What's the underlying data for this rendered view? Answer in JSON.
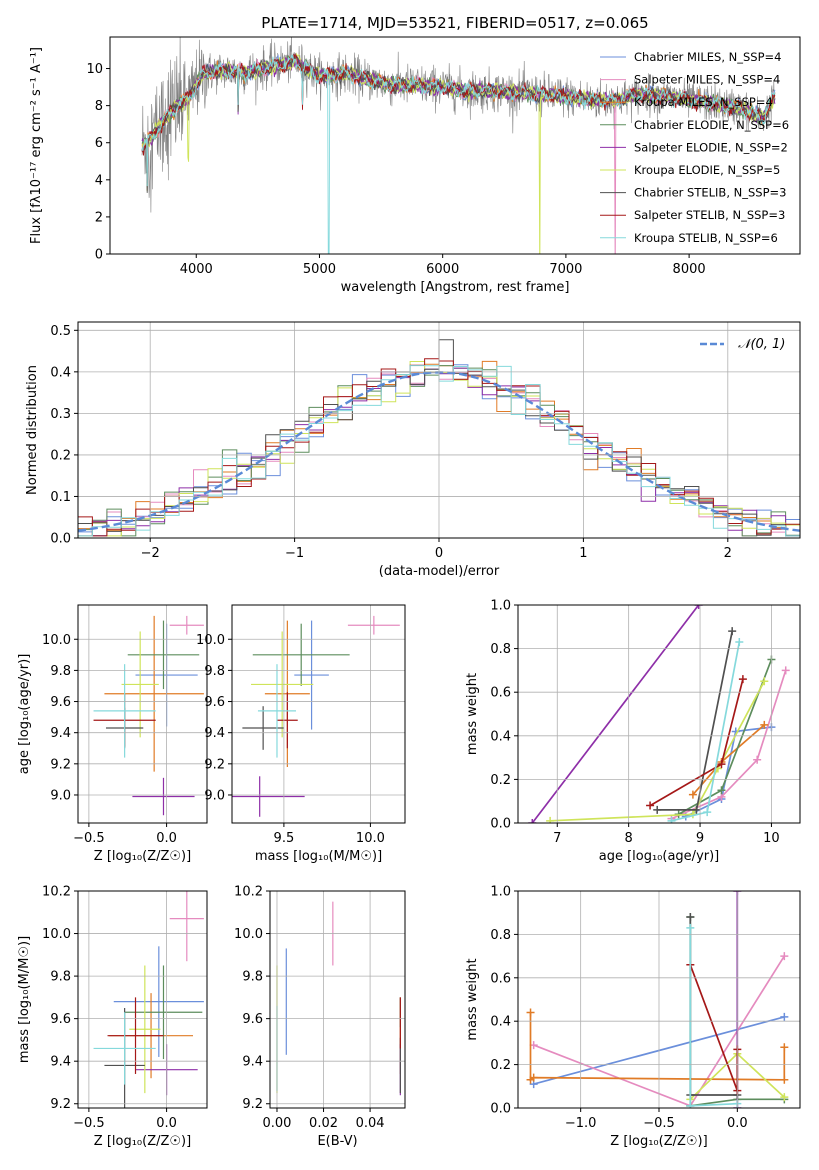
{
  "colors": [
    "#6b8fdb",
    "#e58bbf",
    "#e07b26",
    "#5d8d5d",
    "#8e2fa8",
    "#cfe45a",
    "#505050",
    "#a51818",
    "#85d9dc"
  ],
  "chart_data": [
    {
      "id": "spectrum",
      "type": "line",
      "title": "PLATE=1714, MJD=53521, FIBERID=0517, z=0.065",
      "xlabel": "wavelength [Angstrom, rest frame]",
      "ylabel": "Flux [fλ10⁻¹⁷ erg cm⁻² s⁻¹ A⁻¹]",
      "xlim": [
        3300,
        8900
      ],
      "ylim": [
        0,
        11.7
      ],
      "xticks": [
        "4000",
        "5000",
        "6000",
        "7000",
        "8000"
      ],
      "yticks": [
        "0",
        "2",
        "4",
        "6",
        "8",
        "10"
      ],
      "legend_position": "top-right",
      "legend": [
        "Chabrier MILES, N_SSP=4",
        "Salpeter MILES, N_SSP=4",
        "Kroupa MILES, N_SSP=4",
        "Chabrier ELODIE, N_SSP=6",
        "Salpeter ELODIE, N_SSP=2",
        "Kroupa ELODIE, N_SSP=5",
        "Chabrier STELIB, N_SSP=3",
        "Salpeter STELIB, N_SSP=3",
        "Kroupa STELIB, N_SSP=6"
      ],
      "continuum": {
        "x": [
          3560,
          3650,
          3750,
          3850,
          3950,
          4050,
          4200,
          4400,
          4600,
          4800,
          5000,
          5200,
          5400,
          5600,
          5800,
          6000,
          6200,
          6400,
          6600,
          6800,
          7000,
          7200,
          7400,
          7600,
          7800,
          8000,
          8200,
          8400,
          8600,
          8700
        ],
        "y": [
          5.8,
          6.4,
          7.3,
          8.0,
          8.5,
          9.7,
          9.9,
          9.8,
          10.1,
          10.4,
          9.6,
          9.7,
          9.4,
          9.1,
          9.1,
          9.0,
          8.8,
          8.8,
          8.7,
          8.6,
          8.5,
          8.3,
          8.3,
          8.6,
          8.5,
          8.3,
          8.1,
          7.9,
          7.3,
          8.6
        ]
      }
    },
    {
      "id": "residuals",
      "type": "line",
      "xlabel": "(data-model)/error",
      "ylabel": "Normed distribution",
      "xlim": [
        -2.5,
        2.5
      ],
      "ylim": [
        0,
        0.52
      ],
      "xticks": [
        "−2",
        "−1",
        "0",
        "1",
        "2"
      ],
      "yticks": [
        "0.0",
        "0.1",
        "0.2",
        "0.3",
        "0.4",
        "0.5"
      ],
      "grid": true,
      "legend_position": "top-right",
      "legend": [
        "𝒩(0, 1)"
      ],
      "normal": {
        "mu": 0,
        "sigma": 1
      }
    },
    {
      "id": "age-vs-Z",
      "type": "scatter",
      "xlabel": "Z [log₁₀(Z/Z☉)]",
      "ylabel": "age  [log₁₀(age/yr)]",
      "xlim": [
        -0.57,
        0.26
      ],
      "ylim": [
        8.82,
        10.22
      ],
      "xticks": [
        "−0.5",
        "0.0"
      ],
      "yticks": [
        "9.0",
        "9.2",
        "9.4",
        "9.6",
        "9.8",
        "10.0"
      ],
      "grid": true,
      "points": [
        [
          0.0,
          9.77,
          0.2,
          0.33
        ],
        [
          0.13,
          10.09,
          0.11,
          0.06
        ],
        [
          -0.08,
          9.65,
          0.32,
          0.5
        ],
        [
          -0.02,
          9.9,
          0.23,
          0.22
        ],
        [
          -0.02,
          8.99,
          0.2,
          0.12
        ],
        [
          -0.17,
          9.71,
          0.12,
          0.34
        ],
        [
          -0.27,
          9.43,
          0.12,
          0.13
        ],
        [
          -0.27,
          9.48,
          0.2,
          0.17
        ],
        [
          -0.27,
          9.54,
          0.2,
          0.3
        ]
      ]
    },
    {
      "id": "age-vs-mass",
      "type": "scatter",
      "xlabel": "mass [log₁₀(M/M☉)]",
      "ylabel": "",
      "xlim": [
        9.2,
        10.2
      ],
      "ylim": [
        8.82,
        10.22
      ],
      "xticks": [
        "9.5",
        "10.0"
      ],
      "yticks": [
        "9.0",
        "9.2",
        "9.4",
        "9.6",
        "9.8",
        "10.0"
      ],
      "grid": true,
      "points": [
        [
          9.66,
          9.77,
          0.1,
          0.35
        ],
        [
          10.02,
          10.09,
          0.15,
          0.06
        ],
        [
          9.52,
          9.65,
          0.13,
          0.47
        ],
        [
          9.6,
          9.9,
          0.28,
          0.2
        ],
        [
          9.36,
          8.99,
          0.26,
          0.13
        ],
        [
          9.49,
          9.71,
          0.18,
          0.34
        ],
        [
          9.38,
          9.43,
          0.12,
          0.14
        ],
        [
          9.52,
          9.48,
          0.06,
          0.18
        ],
        [
          9.46,
          9.54,
          0.11,
          0.3
        ]
      ]
    },
    {
      "id": "weight-vs-age",
      "type": "line",
      "xlabel": "age  [log₁₀(age/yr)]",
      "ylabel": "mass weight",
      "xlim": [
        6.45,
        10.4
      ],
      "ylim": [
        0,
        1.0
      ],
      "xticks": [
        "7",
        "8",
        "9",
        "10"
      ],
      "yticks": [
        "0.0",
        "0.2",
        "0.4",
        "0.6",
        "0.8",
        "1.0"
      ],
      "grid": true,
      "series": [
        {
          "x": [
            8.8,
            9.3,
            9.5,
            10.0
          ],
          "y": [
            0.03,
            0.11,
            0.42,
            0.44
          ]
        },
        {
          "x": [
            8.6,
            9.3,
            9.8,
            10.2
          ],
          "y": [
            0.02,
            0.12,
            0.29,
            0.7
          ]
        },
        {
          "x": [
            8.9,
            9.3,
            9.9
          ],
          "y": [
            0.13,
            0.28,
            0.45
          ]
        },
        {
          "x": [
            8.7,
            9.3,
            10.0
          ],
          "y": [
            0.04,
            0.15,
            0.75
          ]
        },
        {
          "x": [
            6.65,
            8.98
          ],
          "y": [
            0.0,
            1.0
          ]
        },
        {
          "x": [
            6.9,
            8.9,
            9.25,
            9.9
          ],
          "y": [
            0.01,
            0.04,
            0.25,
            0.65
          ]
        },
        {
          "x": [
            8.4,
            8.95,
            9.45
          ],
          "y": [
            0.06,
            0.06,
            0.88
          ]
        },
        {
          "x": [
            8.3,
            9.3,
            9.6
          ],
          "y": [
            0.08,
            0.27,
            0.66
          ]
        },
        {
          "x": [
            8.6,
            9.1,
            9.55
          ],
          "y": [
            0.01,
            0.05,
            0.83
          ]
        }
      ]
    },
    {
      "id": "mass-vs-Z",
      "type": "scatter",
      "xlabel": "Z [log₁₀(Z/Z☉)]",
      "ylabel": "mass [log₁₀(M/M☉)]",
      "xlim": [
        -0.57,
        0.26
      ],
      "ylim": [
        9.18,
        10.2
      ],
      "xticks": [
        "−0.5",
        "0.0"
      ],
      "yticks": [
        "9.2",
        "9.4",
        "9.6",
        "9.8",
        "10.0",
        "10.2"
      ],
      "grid": true,
      "points": [
        [
          -0.05,
          9.68,
          0.29,
          0.26
        ],
        [
          0.13,
          10.07,
          0.11,
          0.2
        ],
        [
          -0.1,
          9.52,
          0.27,
          0.2
        ],
        [
          -0.02,
          9.63,
          0.25,
          0.22
        ],
        [
          0.0,
          9.36,
          0.2,
          0.12
        ],
        [
          -0.14,
          9.55,
          0.1,
          0.3
        ],
        [
          -0.27,
          9.38,
          0.13,
          0.27
        ],
        [
          -0.2,
          9.52,
          0.18,
          0.18
        ],
        [
          -0.27,
          9.46,
          0.2,
          0.17
        ]
      ]
    },
    {
      "id": "mass-vs-ebv",
      "type": "scatter",
      "xlabel": "E(B-V)",
      "ylabel": "",
      "xlim": [
        -0.003,
        0.055
      ],
      "ylim": [
        9.18,
        10.2
      ],
      "xticks": [
        "0.00",
        "0.02",
        "0.04"
      ],
      "yticks": [
        "9.2",
        "9.4",
        "9.6",
        "9.8",
        "10.0",
        "10.2"
      ],
      "grid": true,
      "points": [
        [
          0.004,
          9.68,
          0.0,
          0.25
        ],
        [
          0.024,
          10.0,
          0.0,
          0.15
        ],
        [
          0.053,
          9.52,
          0.0,
          0.18
        ],
        [
          0.053,
          9.63,
          0.0,
          0.07
        ],
        [
          0.053,
          9.36,
          0.0,
          0.12
        ],
        [
          0.0,
          9.55,
          0.0,
          0.3
        ],
        [
          0.053,
          9.38,
          0.0,
          0.13
        ],
        [
          0.053,
          9.58,
          0.0,
          0.12
        ],
        [
          0.0,
          9.46,
          0.0,
          0.2
        ]
      ]
    },
    {
      "id": "weight-vs-Z",
      "type": "line",
      "xlabel": "Z [log₁₀(Z/Z☉)]",
      "ylabel": "mass weight",
      "xlim": [
        -1.4,
        0.4
      ],
      "ylim": [
        0,
        1.0
      ],
      "xticks": [
        "−1.0",
        "−0.5",
        "0.0"
      ],
      "yticks": [
        "0.0",
        "0.2",
        "0.4",
        "0.6",
        "0.8",
        "1.0"
      ],
      "grid": true,
      "series": [
        {
          "x": [
            -1.3,
            0.3
          ],
          "y": [
            0.11,
            0.42
          ]
        },
        {
          "x": [
            -1.3,
            -0.3,
            0.3
          ],
          "y": [
            0.29,
            0.01,
            0.7
          ]
        },
        {
          "x": [
            -1.32,
            -1.32,
            -1.3,
            0.3,
            0.3
          ],
          "y": [
            0.44,
            0.13,
            0.14,
            0.13,
            0.28
          ]
        },
        {
          "x": [
            -0.3,
            -0.3,
            0.0,
            0.3
          ],
          "y": [
            0.88,
            0.01,
            0.04,
            0.04
          ]
        },
        {
          "x": [
            0.0,
            0.0
          ],
          "y": [
            1.0,
            0.0
          ]
        },
        {
          "x": [
            -0.3,
            0.0,
            0.3
          ],
          "y": [
            0.04,
            0.25,
            0.05
          ]
        },
        {
          "x": [
            -0.3,
            -0.3,
            0.0
          ],
          "y": [
            0.88,
            0.06,
            0.06
          ]
        },
        {
          "x": [
            -0.3,
            0.0,
            0.0
          ],
          "y": [
            0.66,
            0.08,
            0.27
          ]
        },
        {
          "x": [
            -0.3,
            -0.3,
            0.0
          ],
          "y": [
            0.83,
            0.01,
            0.02
          ]
        }
      ]
    }
  ]
}
